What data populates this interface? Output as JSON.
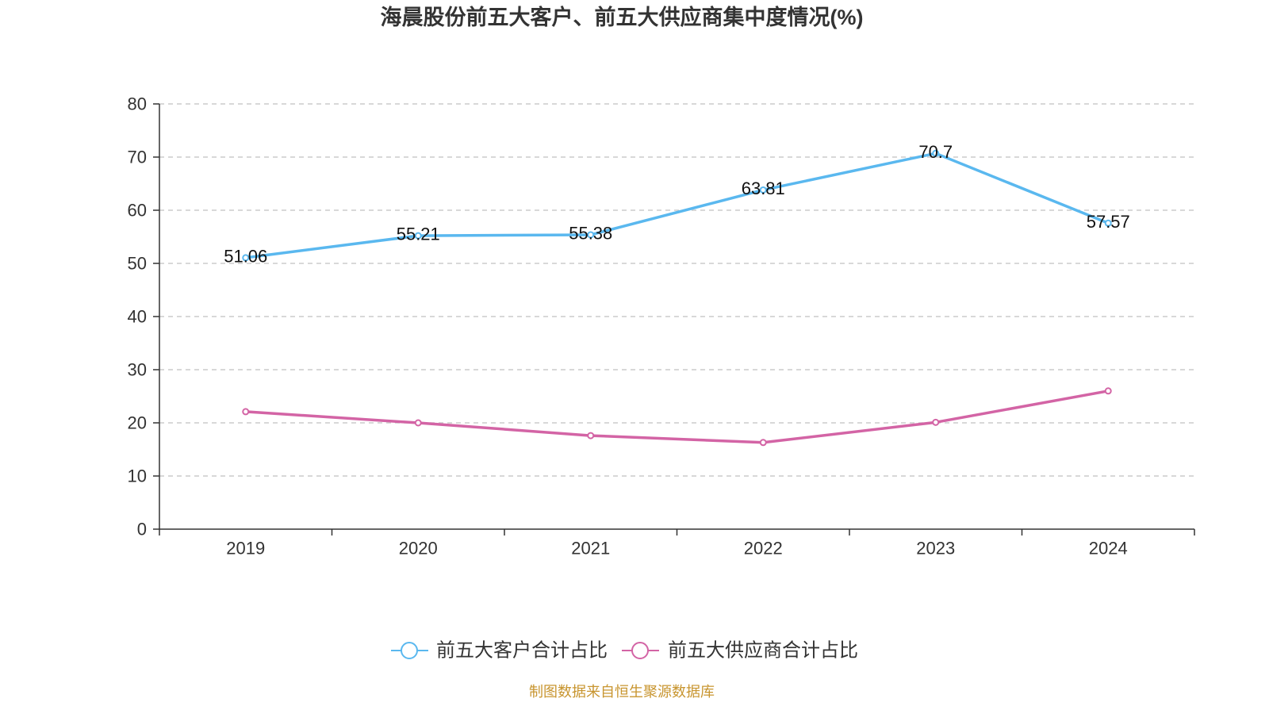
{
  "chart_data": {
    "type": "line",
    "title": "海晨股份前五大客户、前五大供应商集中度情况(%)",
    "xlabel": "",
    "ylabel": "",
    "categories": [
      "2019",
      "2020",
      "2021",
      "2022",
      "2023",
      "2024"
    ],
    "ylim": [
      0,
      80
    ],
    "yticks": [
      0,
      10,
      20,
      30,
      40,
      50,
      60,
      70,
      80
    ],
    "grid": true,
    "legend_position": "bottom-center",
    "series": [
      {
        "name": "前五大客户合计占比",
        "color": "#5ab8ef",
        "show_labels": true,
        "values": [
          51.06,
          55.21,
          55.38,
          63.81,
          70.7,
          57.57
        ]
      },
      {
        "name": "前五大供应商合计占比",
        "color": "#d364a5",
        "show_labels": false,
        "values": [
          22.1,
          20.0,
          17.6,
          16.3,
          20.1,
          26.0
        ]
      }
    ]
  },
  "source_note": "制图数据来自恒生聚源数据库"
}
